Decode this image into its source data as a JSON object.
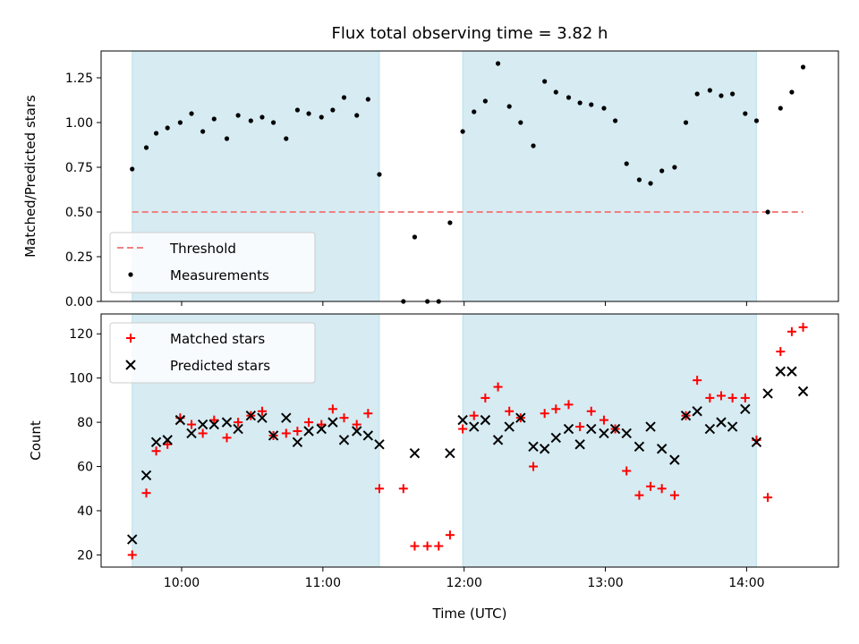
{
  "chart_data": {
    "type": "scatter",
    "title": "Flux total observing time = 3.82 h",
    "xlabel": "Time (UTC)",
    "x_ticks": [
      {
        "label": "10:00",
        "value": 10.0
      },
      {
        "label": "11:00",
        "value": 11.0
      },
      {
        "label": "12:00",
        "value": 12.0
      },
      {
        "label": "13:00",
        "value": 13.0
      },
      {
        "label": "14:00",
        "value": 14.0
      }
    ],
    "xlim": [
      9.43,
      14.65
    ],
    "shaded_spans": [
      [
        9.65,
        11.4
      ],
      [
        11.99,
        14.07
      ]
    ],
    "shade_color": "#add8e6",
    "panels": [
      {
        "ylabel": "Matched/Predicted stars",
        "ylim": [
          0,
          1.4
        ],
        "yticks": [
          0.0,
          0.25,
          0.5,
          0.75,
          1.0,
          1.25
        ],
        "ytick_labels": [
          "0.00",
          "0.25",
          "0.50",
          "0.75",
          "1.00",
          "1.25"
        ],
        "legend": [
          {
            "label": "Threshold",
            "kind": "dashed-line",
            "color": "#f08080"
          },
          {
            "label": "Measurements",
            "kind": "dot",
            "color": "#000000"
          }
        ],
        "threshold": {
          "name": "Threshold",
          "value": 0.5,
          "x_range": [
            9.65,
            14.4
          ],
          "color": "#f08080"
        },
        "measurements": {
          "name": "Measurements",
          "color": "#000000",
          "x": [
            9.65,
            9.75,
            9.82,
            9.9,
            9.99,
            10.07,
            10.15,
            10.23,
            10.32,
            10.4,
            10.49,
            10.57,
            10.65,
            10.74,
            10.82,
            10.9,
            10.99,
            11.07,
            11.15,
            11.24,
            11.32,
            11.4,
            11.57,
            11.65,
            11.74,
            11.82,
            11.9,
            11.99,
            12.07,
            12.15,
            12.24,
            12.32,
            12.4,
            12.49,
            12.57,
            12.65,
            12.74,
            12.82,
            12.9,
            12.99,
            13.07,
            13.15,
            13.24,
            13.32,
            13.4,
            13.49,
            13.57,
            13.65,
            13.74,
            13.82,
            13.9,
            13.99,
            14.07,
            14.15,
            14.24,
            14.32,
            14.4
          ],
          "y": [
            0.74,
            0.86,
            0.94,
            0.97,
            1.0,
            1.05,
            0.95,
            1.02,
            0.91,
            1.04,
            1.01,
            1.03,
            1.0,
            0.91,
            1.07,
            1.05,
            1.03,
            1.07,
            1.14,
            1.04,
            1.13,
            0.71,
            0.0,
            0.36,
            0.0,
            0.0,
            0.44,
            0.95,
            1.06,
            1.12,
            1.33,
            1.09,
            1.0,
            0.87,
            1.23,
            1.17,
            1.14,
            1.11,
            1.1,
            1.08,
            1.01,
            0.77,
            0.68,
            0.66,
            0.73,
            0.75,
            1.0,
            1.16,
            1.18,
            1.15,
            1.16,
            1.05,
            1.01,
            0.5,
            1.08,
            1.17,
            1.31
          ]
        }
      },
      {
        "ylabel": "Count",
        "ylim": [
          14.5,
          129
        ],
        "yticks": [
          20,
          40,
          60,
          80,
          100,
          120
        ],
        "ytick_labels": [
          "20",
          "40",
          "60",
          "80",
          "100",
          "120"
        ],
        "legend": [
          {
            "label": "Matched stars",
            "kind": "plus",
            "color": "#ff0000"
          },
          {
            "label": "Predicted stars",
            "kind": "cross",
            "color": "#000000"
          }
        ],
        "series": [
          {
            "name": "Matched stars",
            "marker": "plus",
            "color": "#ff0000",
            "x": [
              9.65,
              9.75,
              9.82,
              9.9,
              9.99,
              10.07,
              10.15,
              10.23,
              10.32,
              10.4,
              10.49,
              10.57,
              10.65,
              10.74,
              10.82,
              10.9,
              10.99,
              11.07,
              11.15,
              11.24,
              11.32,
              11.4,
              11.57,
              11.65,
              11.74,
              11.82,
              11.9,
              11.99,
              12.07,
              12.15,
              12.24,
              12.32,
              12.4,
              12.49,
              12.57,
              12.65,
              12.74,
              12.82,
              12.9,
              12.99,
              13.07,
              13.15,
              13.24,
              13.32,
              13.4,
              13.49,
              13.57,
              13.65,
              13.74,
              13.82,
              13.9,
              13.99,
              14.07,
              14.15,
              14.24,
              14.32,
              14.4
            ],
            "y": [
              20,
              48,
              67,
              70,
              82,
              79,
              75,
              81,
              73,
              80,
              83,
              85,
              74,
              75,
              76,
              80,
              79,
              86,
              82,
              79,
              84,
              50,
              50,
              24,
              24,
              24,
              29,
              77,
              83,
              91,
              96,
              85,
              82,
              60,
              84,
              86,
              88,
              78,
              85,
              81,
              77,
              58,
              47,
              51,
              50,
              47,
              83,
              99,
              91,
              92,
              91,
              91,
              72,
              46,
              112,
              121,
              123
            ]
          },
          {
            "name": "Predicted stars",
            "marker": "cross",
            "color": "#000000",
            "x": [
              9.65,
              9.75,
              9.82,
              9.9,
              9.99,
              10.07,
              10.15,
              10.23,
              10.32,
              10.4,
              10.49,
              10.57,
              10.65,
              10.74,
              10.82,
              10.9,
              10.99,
              11.07,
              11.15,
              11.24,
              11.32,
              11.4,
              11.65,
              11.9,
              11.99,
              12.07,
              12.15,
              12.24,
              12.32,
              12.4,
              12.49,
              12.57,
              12.65,
              12.74,
              12.82,
              12.9,
              12.99,
              13.07,
              13.15,
              13.24,
              13.32,
              13.4,
              13.49,
              13.57,
              13.65,
              13.74,
              13.82,
              13.9,
              13.99,
              14.07,
              14.15,
              14.24,
              14.32,
              14.4
            ],
            "y": [
              27,
              56,
              71,
              72,
              81,
              75,
              79,
              79,
              80,
              77,
              83,
              82,
              74,
              82,
              71,
              76,
              77,
              80,
              72,
              76,
              74,
              70,
              66,
              66,
              81,
              78,
              81,
              72,
              78,
              82,
              69,
              68,
              73,
              77,
              70,
              77,
              75,
              77,
              75,
              69,
              78,
              68,
              63,
              83,
              85,
              77,
              80,
              78,
              86,
              71,
              93,
              103,
              103,
              94
            ]
          }
        ]
      }
    ]
  }
}
